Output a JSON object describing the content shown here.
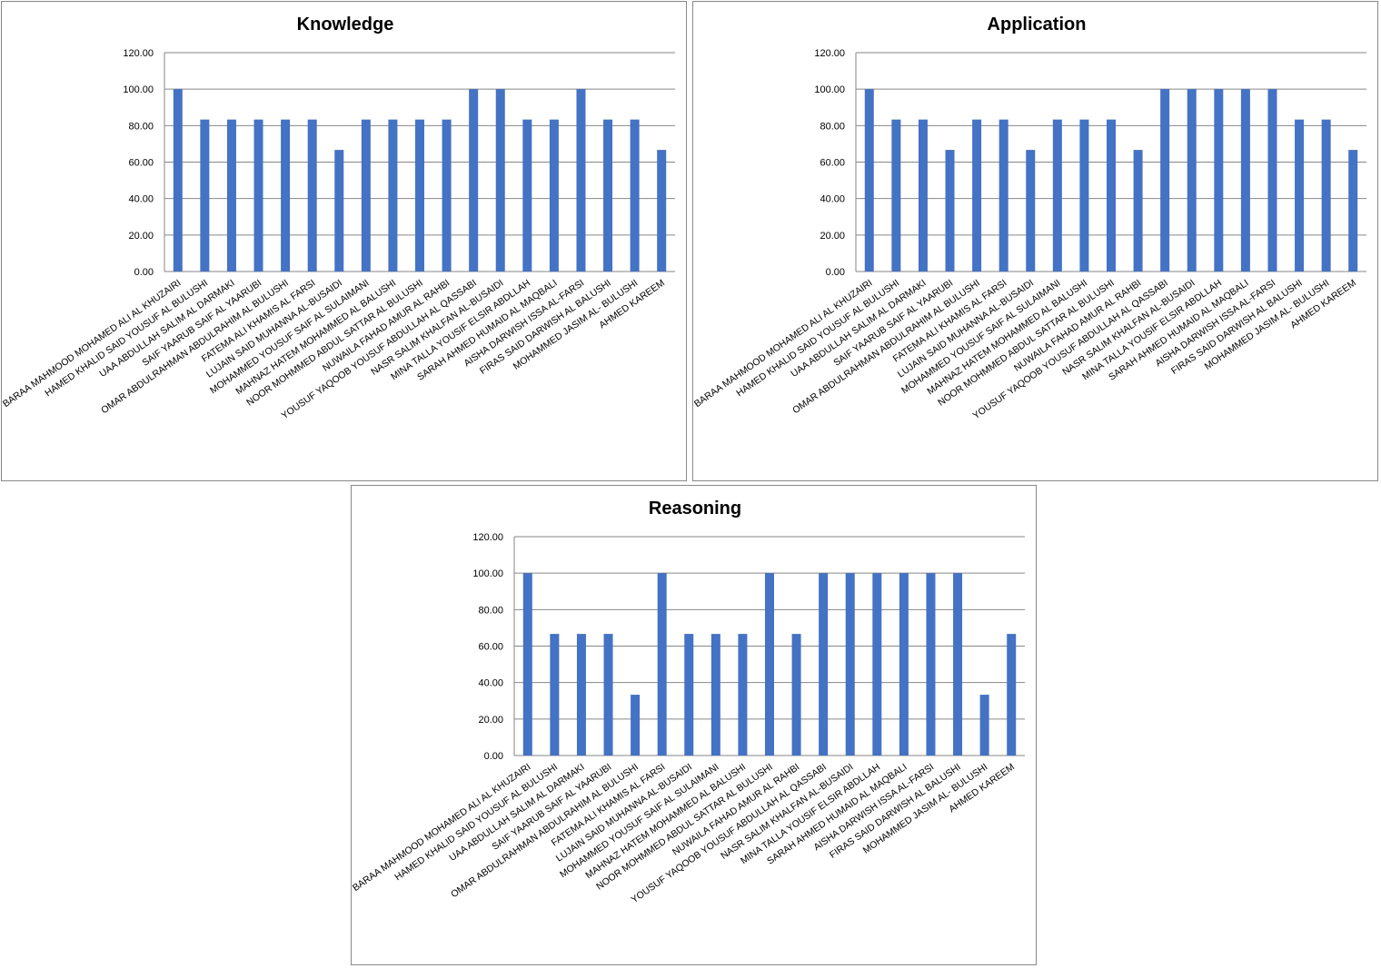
{
  "chart_data": [
    {
      "type": "bar",
      "title": "Knowledge",
      "color": "#4472c4",
      "grid": true,
      "categories": [
        "BARAA MAHMOOD MOHAMED ALI AL KHUZAIRI",
        "HAMED KHALID SAID YOUSUF AL BULUSHI",
        "UAA ABDULLAH SALIM AL DARMAKI",
        "SAIF YAARUB SAIF AL YAARUBI",
        "OMAR ABDULRAHMAN ABDULRAHIM AL BULUSHI",
        "FATEMA ALI KHAMIS AL FARSI",
        "LUJAIN SAID MUHANNA AL-BUSAIDI",
        "MOHAMMED YOUSUF SAIF AL SULAIMANI",
        "MAHNAZ HATEM MOHAMMED AL BALUSHI",
        "NOOR MOHMMED ABDUL SATTAR AL BULUSHI",
        "NUWAILA FAHAD AMUR AL RAHBI",
        "YOUSUF YAQOOB YOUSUF ABDULLAH AL QASSABI",
        "NASR SALIM KHALFAN AL-BUSAIDI",
        "MINA TALLA YOUSIF ELSIR ABDLLAH",
        "SARAH AHMED HUMAID AL MAQBALI",
        "AISHA DARWISH ISSA AL-FARSI",
        "FIRAS SAID DARWISH AL BALUSHI",
        "MOHAMMED JASIM AL- BULUSHI",
        "AHMED KAREEM"
      ],
      "values": [
        100,
        83.33,
        83.33,
        83.33,
        83.33,
        83.33,
        66.67,
        83.33,
        83.33,
        83.33,
        83.33,
        100,
        100,
        83.33,
        83.33,
        100,
        83.33,
        83.33,
        66.67
      ],
      "ylim": [
        0,
        120
      ],
      "yticks": [
        {
          "value": 0,
          "label": "0.00"
        },
        {
          "value": 20,
          "label": "20.00"
        },
        {
          "value": 40,
          "label": "40.00"
        },
        {
          "value": 60,
          "label": "60.00"
        },
        {
          "value": 80,
          "label": "80.00"
        },
        {
          "value": 100,
          "label": "100.00"
        },
        {
          "value": 120,
          "label": "120.00"
        }
      ]
    },
    {
      "type": "bar",
      "title": "Application",
      "color": "#4472c4",
      "grid": true,
      "categories": [
        "BARAA MAHMOOD MOHAMED ALI AL KHUZAIRI",
        "HAMED KHALID SAID YOUSUF AL BULUSHI",
        "UAA ABDULLAH SALIM AL DARMAKI",
        "SAIF YAARUB SAIF AL YAARUBI",
        "OMAR ABDULRAHMAN ABDULRAHIM AL BULUSHI",
        "FATEMA ALI KHAMIS AL FARSI",
        "LUJAIN SAID MUHANNA AL-BUSAIDI",
        "MOHAMMED YOUSUF SAIF AL SULAIMANI",
        "MAHNAZ HATEM MOHAMMED AL BALUSHI",
        "NOOR MOHMMED ABDUL SATTAR AL BULUSHI",
        "NUWAILA FAHAD AMUR AL RAHBI",
        "YOUSUF YAQOOB YOUSUF ABDULLAH AL QASSABI",
        "NASR SALIM KHALFAN AL-BUSAIDI",
        "MINA TALLA YOUSIF ELSIR ABDLLAH",
        "SARAH AHMED HUMAID AL MAQBALI",
        "AISHA DARWISH ISSA AL-FARSI",
        "FIRAS SAID DARWISH AL BALUSHI",
        "MOHAMMED JASIM AL- BULUSHI",
        "AHMED KAREEM"
      ],
      "values": [
        100,
        83.33,
        83.33,
        66.67,
        83.33,
        83.33,
        66.67,
        83.33,
        83.33,
        83.33,
        66.67,
        100,
        100,
        100,
        100,
        100,
        83.33,
        83.33,
        66.67
      ],
      "ylim": [
        0,
        120
      ],
      "yticks": [
        {
          "value": 0,
          "label": "0.00"
        },
        {
          "value": 20,
          "label": "20.00"
        },
        {
          "value": 40,
          "label": "40.00"
        },
        {
          "value": 60,
          "label": "60.00"
        },
        {
          "value": 80,
          "label": "80.00"
        },
        {
          "value": 100,
          "label": "100.00"
        },
        {
          "value": 120,
          "label": "120.00"
        }
      ]
    },
    {
      "type": "bar",
      "title": "Reasoning",
      "color": "#4472c4",
      "grid": true,
      "categories": [
        "BARAA MAHMOOD MOHAMED ALI AL KHUZAIRI",
        "HAMED KHALID SAID YOUSUF AL BULUSHI",
        "UAA ABDULLAH SALIM AL DARMAKI",
        "SAIF YAARUB SAIF AL YAARUBI",
        "OMAR ABDULRAHMAN ABDULRAHIM AL BULUSHI",
        "FATEMA ALI KHAMIS AL FARSI",
        "LUJAIN SAID MUHANNA AL-BUSAIDI",
        "MOHAMMED YOUSUF SAIF AL SULAIMANI",
        "MAHNAZ HATEM MOHAMMED AL BALUSHI",
        "NOOR MOHMMED ABDUL SATTAR AL BULUSHI",
        "NUWAILA FAHAD AMUR AL RAHBI",
        "YOUSUF YAQOOB YOUSUF ABDULLAH AL QASSABI",
        "NASR SALIM KHALFAN AL-BUSAIDI",
        "MINA TALLA YOUSIF ELSIR ABDLLAH",
        "SARAH AHMED HUMAID AL MAQBALI",
        "AISHA DARWISH ISSA AL-FARSI",
        "FIRAS SAID DARWISH AL BALUSHI",
        "MOHAMMED JASIM AL- BULUSHI",
        "AHMED KAREEM"
      ],
      "values": [
        100,
        66.67,
        66.67,
        66.67,
        33.33,
        100,
        66.67,
        66.67,
        66.67,
        100,
        66.67,
        100,
        100,
        100,
        100,
        100,
        100,
        33.33,
        66.67
      ],
      "ylim": [
        0,
        120
      ],
      "yticks": [
        {
          "value": 0,
          "label": "0.00"
        },
        {
          "value": 20,
          "label": "20.00"
        },
        {
          "value": 40,
          "label": "40.00"
        },
        {
          "value": 60,
          "label": "60.00"
        },
        {
          "value": 80,
          "label": "80.00"
        },
        {
          "value": 100,
          "label": "100.00"
        },
        {
          "value": 120,
          "label": "120.00"
        }
      ]
    }
  ]
}
